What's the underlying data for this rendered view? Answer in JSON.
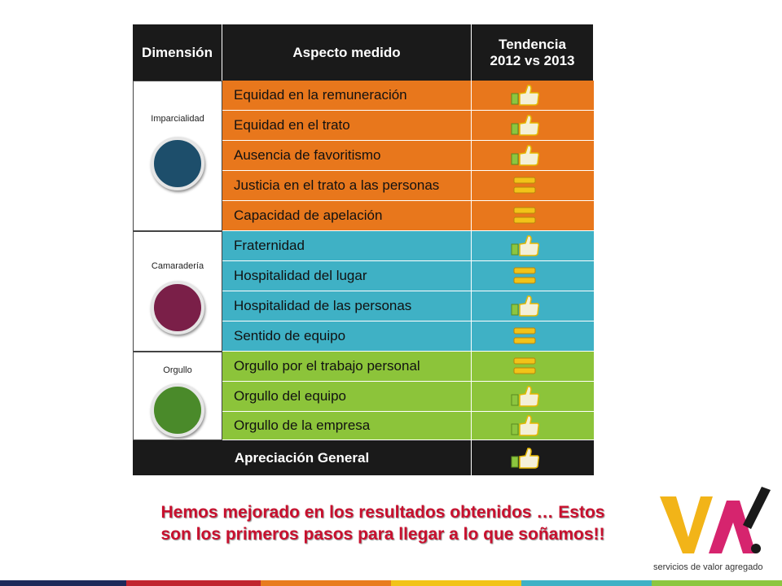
{
  "header": {
    "dimension": "Dimensión",
    "aspect": "Aspecto medido",
    "trend": "Tendencia 2012 vs 2013"
  },
  "groups": [
    {
      "dimension": "Imparcialidad",
      "rows": [
        "Equidad en la remuneración",
        "Equidad en el trato",
        "Ausencia de favoritismo",
        "Justicia en el trato a las personas",
        "Capacidad de apelación"
      ]
    },
    {
      "dimension": "Camaradería",
      "rows": [
        "Fraternidad",
        "Hospitalidad del lugar",
        "Hospitalidad de las personas",
        "Sentido de equipo"
      ]
    },
    {
      "dimension": "Orgullo",
      "rows": [
        "Orgullo por el trabajo personal",
        "Orgullo del equipo",
        "Orgullo de la empresa"
      ]
    }
  ],
  "summary": "Apreciación General",
  "message": "Hemos mejorado en los resultados obtenidos … Estos son los primeros pasos para llegar a lo que soñamos!!",
  "logo": {
    "tagline": "servicios de valor agregado"
  }
}
